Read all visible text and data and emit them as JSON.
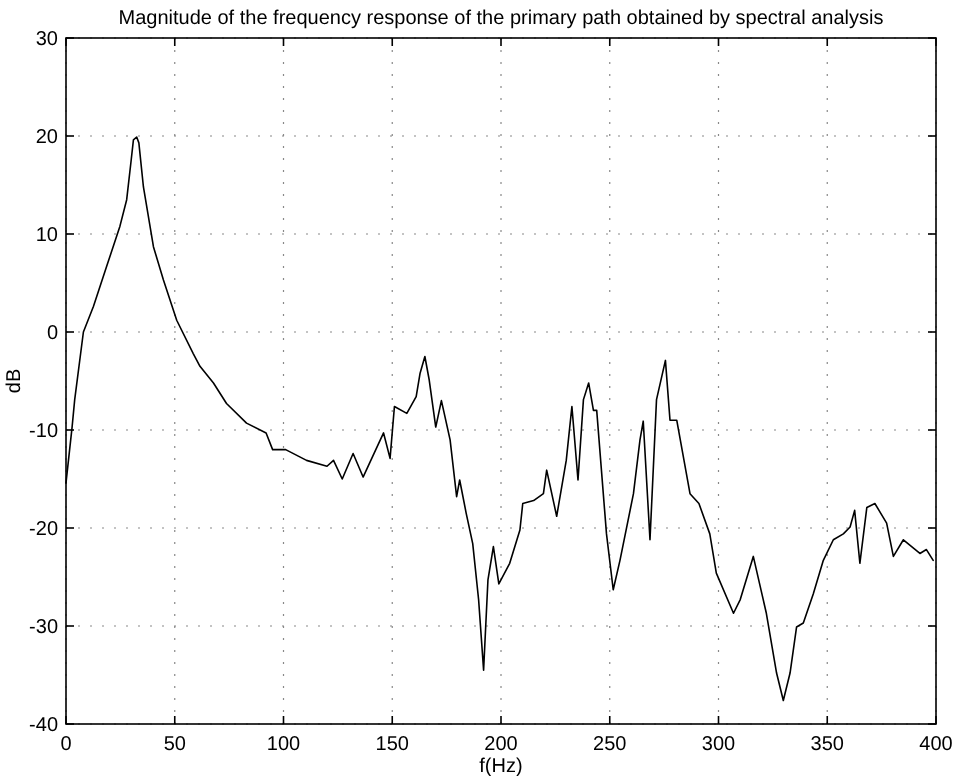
{
  "chart_data": {
    "type": "line",
    "title": "Magnitude of the frequency response of the primary path obtained by spectral analysis",
    "xlabel": "f(Hz)",
    "ylabel": "dB",
    "xlim": [
      0,
      400
    ],
    "ylim": [
      -40,
      30
    ],
    "xticks": [
      0,
      50,
      100,
      150,
      200,
      250,
      300,
      350,
      400
    ],
    "yticks": [
      -40,
      -30,
      -20,
      -10,
      0,
      10,
      20,
      30
    ],
    "grid": true,
    "marker": "none",
    "line_style": "solid",
    "series": [
      {
        "color": "#000000",
        "x": [
          0,
          2.8,
          4,
          8,
          12.6,
          18.7,
          24.8,
          27.9,
          30,
          31,
          32.5,
          33.5,
          35.6,
          40.2,
          44.8,
          50.9,
          58.5,
          61.6,
          67.8,
          73.8,
          83,
          92,
          95,
          101,
          110.6,
          120,
          123,
          127,
          132,
          136.6,
          141,
          146,
          149,
          151,
          156.7,
          161,
          162.8,
          165,
          167,
          170,
          172.6,
          176.6,
          179.6,
          181,
          184,
          187,
          189.7,
          192,
          194,
          196.5,
          199,
          204,
          208.7,
          210,
          215,
          219.5,
          221,
          225.6,
          230,
          232.6,
          235.4,
          237.9,
          240.3,
          242.5,
          244,
          248.5,
          251.6,
          254.7,
          260.9,
          263.9,
          265.4,
          268.5,
          271.5,
          275.6,
          277.7,
          280.8,
          286.9,
          291,
          296,
          299,
          306.9,
          310,
          316,
          322,
          326.7,
          329.8,
          332.9,
          335.9,
          339,
          343.6,
          348.2,
          352.8,
          357.4,
          360.5,
          362.6,
          365,
          368.2,
          371.9,
          377.3,
          380.4,
          385,
          392.6,
          395.6,
          398.7
        ],
        "values": [
          -15.4,
          -9.7,
          -6.9,
          0,
          2.6,
          6.7,
          10.8,
          13.5,
          17.6,
          19.6,
          19.9,
          19.3,
          14.8,
          8.7,
          5.3,
          1.2,
          -2.2,
          -3.5,
          -5.2,
          -7.3,
          -9.3,
          -10.3,
          -12,
          -12,
          -13.1,
          -13.7,
          -13.1,
          -15,
          -12.4,
          -14.8,
          -12.7,
          -10.3,
          -12.9,
          -7.6,
          -8.3,
          -6.6,
          -4.2,
          -2.5,
          -4.9,
          -9.7,
          -7,
          -11,
          -16.8,
          -15.1,
          -18.5,
          -21.6,
          -27.3,
          -34.5,
          -25.3,
          -21.9,
          -25.7,
          -23.6,
          -20.2,
          -17.5,
          -17.2,
          -16.5,
          -14.1,
          -18.8,
          -13.1,
          -7.6,
          -15.1,
          -6.9,
          -5.2,
          -8,
          -8,
          -20.6,
          -26.3,
          -23.3,
          -16.5,
          -11,
          -9.1,
          -21.2,
          -6.9,
          -2.9,
          -9,
          -9,
          -16.5,
          -17.5,
          -20.6,
          -24.6,
          -28.7,
          -27.3,
          -22.9,
          -28.7,
          -34.8,
          -37.6,
          -34.8,
          -30.1,
          -29.7,
          -26.7,
          -23.3,
          -21.2,
          -20.6,
          -19.9,
          -18.2,
          -23.6,
          -17.9,
          -17.5,
          -19.5,
          -22.9,
          -21.2,
          -22.6,
          -22.2,
          -23.3
        ]
      }
    ]
  }
}
